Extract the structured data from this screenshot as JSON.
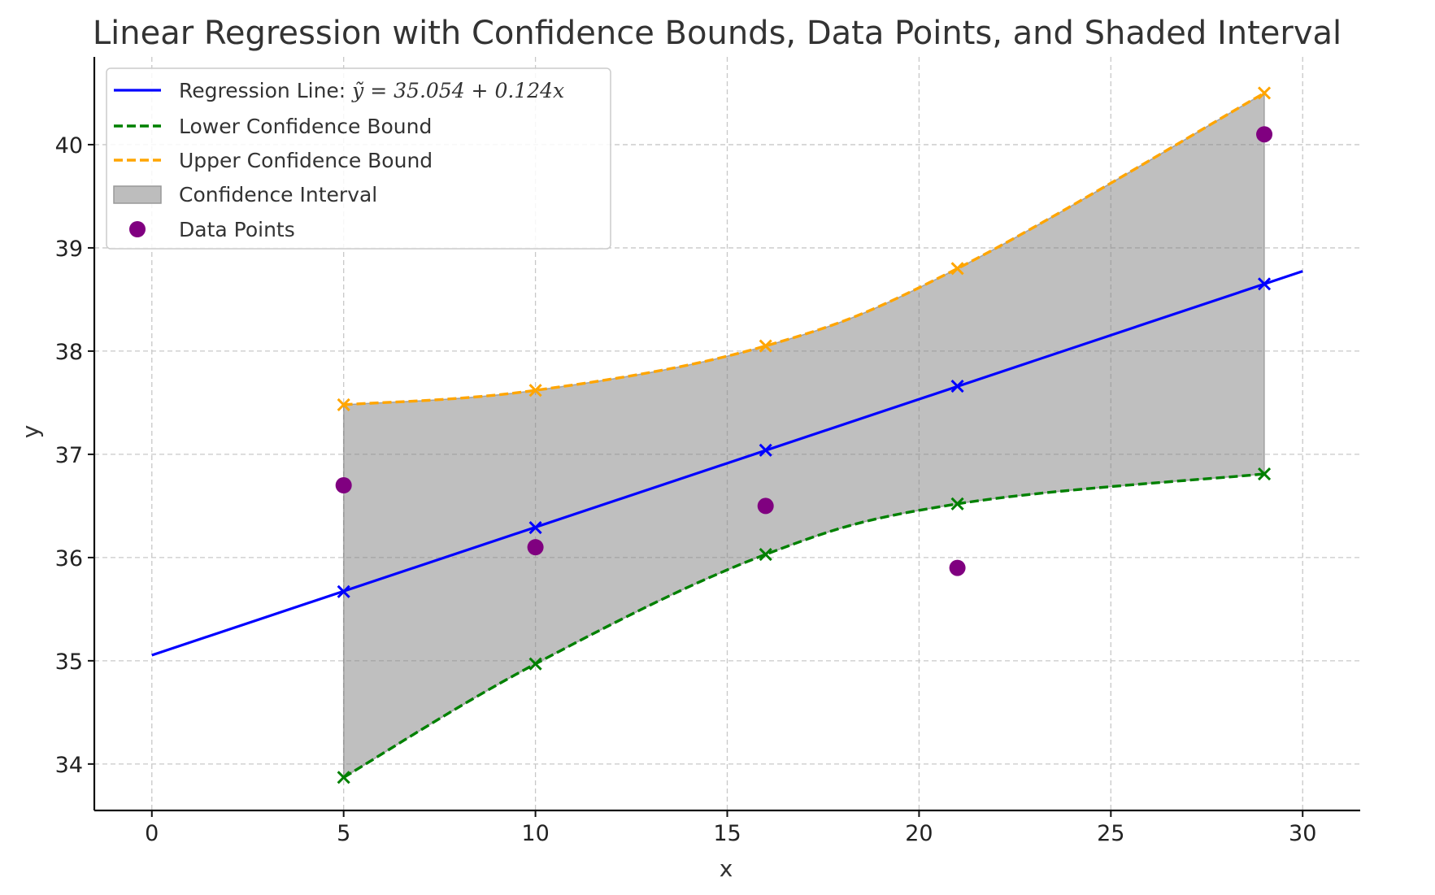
{
  "chart_data": {
    "type": "line",
    "title": "Linear Regression with Confidence Bounds, Data Points, and Shaded Interval",
    "xlabel": "x",
    "ylabel": "y",
    "xlim": [
      -1.5,
      31.5
    ],
    "ylim": [
      33.55,
      40.85
    ],
    "xticks": [
      0,
      5,
      10,
      15,
      20,
      25,
      30
    ],
    "yticks": [
      34,
      35,
      36,
      37,
      38,
      39,
      40
    ],
    "grid": true,
    "legend_position": "top-left",
    "regression": {
      "name": "Regression Line: ỹ = 35.054 + 0.124x",
      "intercept": 35.054,
      "slope": 0.124,
      "x_range": [
        0,
        30
      ],
      "color": "#0000ff",
      "marker_x": [
        5,
        10,
        16,
        21,
        29
      ],
      "marker_y": [
        35.67,
        36.29,
        37.04,
        37.66,
        38.65
      ]
    },
    "series": [
      {
        "name": "Lower Confidence Bound",
        "x": [
          5,
          10,
          16,
          21,
          29
        ],
        "y": [
          33.87,
          34.97,
          36.03,
          36.52,
          36.81
        ],
        "color": "#008000",
        "style": "dashed"
      },
      {
        "name": "Upper Confidence Bound",
        "x": [
          5,
          10,
          16,
          21,
          29
        ],
        "y": [
          37.48,
          37.62,
          38.05,
          38.8,
          40.5
        ],
        "color": "#ffa500",
        "style": "dashed"
      }
    ],
    "interval": {
      "name": "Confidence Interval",
      "color": "#808080",
      "opacity": 0.5
    },
    "points": {
      "name": "Data Points",
      "x": [
        5,
        10,
        16,
        21,
        29
      ],
      "y": [
        36.7,
        36.1,
        36.5,
        35.9,
        40.1
      ],
      "color": "#800080"
    },
    "legend": [
      {
        "label": "Regression Line: ",
        "math": "ỹ = 35.054 + 0.124x",
        "kind": "line",
        "color": "#0000ff"
      },
      {
        "label": "Lower Confidence Bound",
        "kind": "dashed",
        "color": "#008000"
      },
      {
        "label": "Upper Confidence Bound",
        "kind": "dashed",
        "color": "#ffa500"
      },
      {
        "label": "Confidence Interval",
        "kind": "patch",
        "color": "#bdbdbd"
      },
      {
        "label": "Data Points",
        "kind": "dot",
        "color": "#800080"
      }
    ]
  }
}
